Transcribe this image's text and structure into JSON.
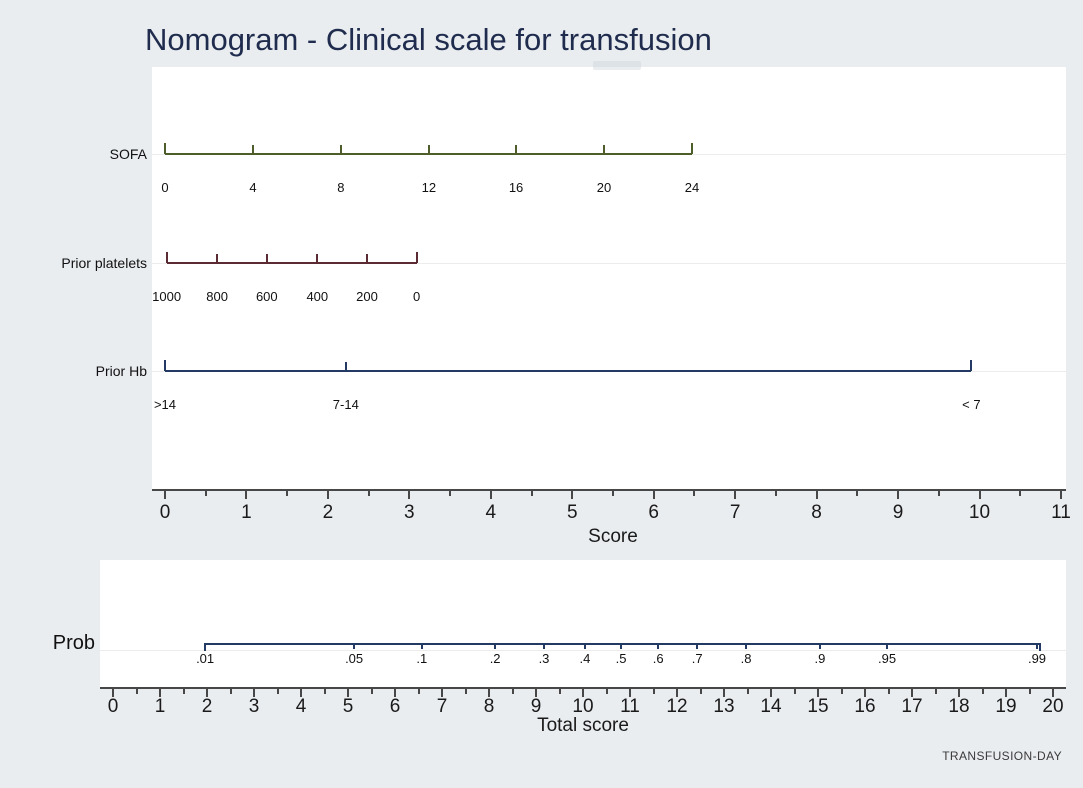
{
  "page": {
    "title": "Nomogram - Clinical scale for transfusion",
    "watermark": "TRANSFUSION-DAY"
  },
  "colors": {
    "background": "#e9edf0",
    "panel": "#ffffff",
    "title": "#202c4e",
    "axis": "#474747",
    "axis_text": "#1a1a1a",
    "gridline": "#ececec",
    "sofa_line": "#4e5e2a",
    "platelets_line": "#5b2b34",
    "hb_line": "#223a64",
    "prob_line": "#223a64"
  },
  "chart_data": [
    {
      "type": "nomogram",
      "panel": "predictor-scales",
      "axis": {
        "label": "Score",
        "min": 0,
        "max": 11,
        "major_step": 1,
        "minor_step": 0.5,
        "tick_labels": [
          "0",
          "1",
          "2",
          "3",
          "4",
          "5",
          "6",
          "7",
          "8",
          "9",
          "10",
          "11"
        ]
      },
      "rows": [
        {
          "name": "SOFA",
          "color": "#4e5e2a",
          "tick_side": "up",
          "line": [
            0,
            6.47
          ],
          "ticks": [
            {
              "label": "0",
              "pos": 0
            },
            {
              "label": "4",
              "pos": 1.08
            },
            {
              "label": "8",
              "pos": 2.16
            },
            {
              "label": "12",
              "pos": 3.24
            },
            {
              "label": "16",
              "pos": 4.31
            },
            {
              "label": "20",
              "pos": 5.39
            },
            {
              "label": "24",
              "pos": 6.47
            }
          ]
        },
        {
          "name": "Prior platelets",
          "color": "#5b2b34",
          "tick_side": "up",
          "line": [
            0.02,
            3.09
          ],
          "ticks": [
            {
              "label": "1000",
              "pos": 0.02
            },
            {
              "label": "800",
              "pos": 0.64
            },
            {
              "label": "600",
              "pos": 1.25
            },
            {
              "label": "400",
              "pos": 1.87
            },
            {
              "label": "200",
              "pos": 2.48
            },
            {
              "label": "0",
              "pos": 3.09
            }
          ]
        },
        {
          "name": "Prior Hb",
          "color": "#223a64",
          "tick_side": "up",
          "line": [
            0,
            9.9
          ],
          "ticks": [
            {
              "label": ">14",
              "pos": 0
            },
            {
              "label": "7-14",
              "pos": 2.22
            },
            {
              "label": "< 7",
              "pos": 9.9
            }
          ]
        }
      ]
    },
    {
      "type": "nomogram",
      "panel": "probability",
      "axis": {
        "label": "Total score",
        "min": 0,
        "max": 20,
        "major_step": 1,
        "minor_step": 0.5,
        "tick_labels": [
          "0",
          "1",
          "2",
          "3",
          "4",
          "5",
          "6",
          "7",
          "8",
          "9",
          "10",
          "11",
          "12",
          "13",
          "14",
          "15",
          "16",
          "17",
          "18",
          "19",
          "20"
        ]
      },
      "rows": [
        {
          "name": "Prob",
          "color": "#223a64",
          "tick_side": "down",
          "line": [
            1.96,
            19.72
          ],
          "ticks": [
            {
              "label": ".01",
              "pos": 1.96
            },
            {
              "label": ".05",
              "pos": 5.13
            },
            {
              "label": ".1",
              "pos": 6.57
            },
            {
              "label": ".2",
              "pos": 8.13
            },
            {
              "label": ".3",
              "pos": 9.17
            },
            {
              "label": ".4",
              "pos": 10.04
            },
            {
              "label": ".5",
              "pos": 10.81
            },
            {
              "label": ".6",
              "pos": 11.6
            },
            {
              "label": ".7",
              "pos": 12.43
            },
            {
              "label": ".8",
              "pos": 13.47
            },
            {
              "label": ".9",
              "pos": 15.04
            },
            {
              "label": ".95",
              "pos": 16.47
            },
            {
              "label": ".99",
              "pos": 19.66
            }
          ]
        }
      ]
    }
  ]
}
